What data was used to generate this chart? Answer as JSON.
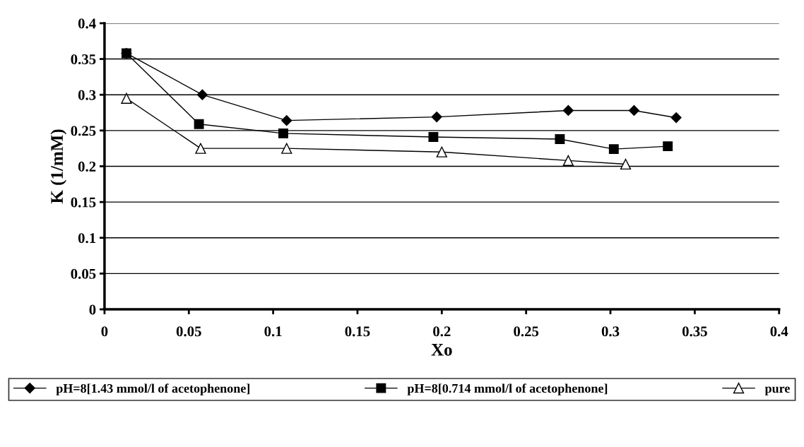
{
  "chart_data": {
    "type": "line",
    "xlabel": "Xo",
    "ylabel": "K (1/mM)",
    "xlim": [
      0,
      0.4
    ],
    "xticks": [
      0,
      0.05,
      0.1,
      0.15,
      0.2,
      0.25,
      0.3,
      0.35,
      0.4
    ],
    "ylim": [
      0,
      0.4
    ],
    "yticks": [
      0,
      0.05,
      0.1,
      0.15,
      0.2,
      0.25,
      0.3,
      0.35,
      0.4
    ],
    "grid": "y",
    "legend": "bottom",
    "line_style": "solid",
    "series": [
      {
        "name": "pH=8[1.43 mmol/l of acetophenone]",
        "color": "#000000",
        "marker": "diamond",
        "x": [
          0.013,
          0.058,
          0.108,
          0.197,
          0.275,
          0.314,
          0.339
        ],
        "values": [
          0.358,
          0.3,
          0.264,
          0.269,
          0.278,
          0.278,
          0.268
        ]
      },
      {
        "name": "pH=8[0.714 mmol/l of acetophenone]",
        "color": "#000000",
        "marker": "square",
        "x": [
          0.013,
          0.056,
          0.106,
          0.195,
          0.27,
          0.302,
          0.334
        ],
        "values": [
          0.358,
          0.259,
          0.246,
          0.241,
          0.238,
          0.224,
          0.228
        ]
      },
      {
        "name": "pure",
        "color": "#000000",
        "marker": "triangle",
        "x": [
          0.013,
          0.057,
          0.108,
          0.2,
          0.275,
          0.309
        ],
        "values": [
          0.295,
          0.225,
          0.225,
          0.22,
          0.208,
          0.203
        ]
      }
    ]
  }
}
